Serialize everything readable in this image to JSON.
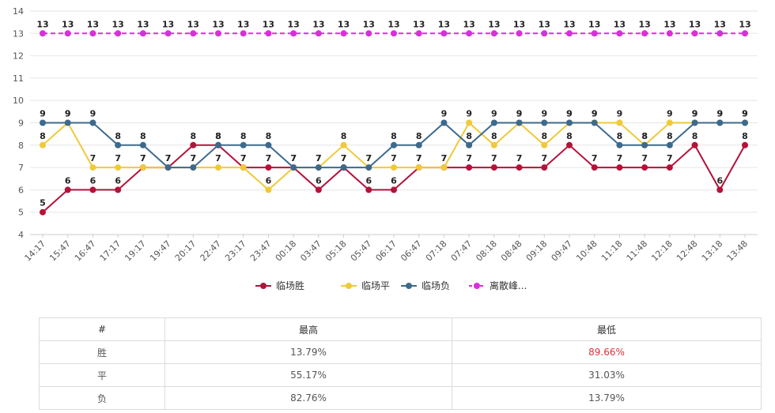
{
  "chart_data": {
    "type": "line",
    "x": [
      "14:17",
      "15:47",
      "16:47",
      "17:17",
      "19:17",
      "19:47",
      "20:17",
      "22:47",
      "23:17",
      "23:47",
      "00:18",
      "03:47",
      "05:18",
      "05:47",
      "06:17",
      "06:47",
      "07:18",
      "07:47",
      "08:18",
      "08:48",
      "09:18",
      "09:47",
      "10:48",
      "11:18",
      "11:48",
      "12:18",
      "12:48",
      "13:18",
      "13:48"
    ],
    "ylim": [
      4,
      14
    ],
    "yticks": [
      4,
      5,
      6,
      7,
      8,
      9,
      10,
      11,
      12,
      13,
      14
    ],
    "grid": true,
    "legend_position": "bottom",
    "series": [
      {
        "name": "临场胜",
        "color": "#b5123a",
        "style": "solid",
        "values": [
          5,
          6,
          6,
          6,
          7,
          7,
          8,
          8,
          7,
          7,
          7,
          6,
          7,
          6,
          6,
          7,
          7,
          7,
          7,
          7,
          7,
          8,
          7,
          7,
          7,
          7,
          8,
          6,
          8
        ]
      },
      {
        "name": "临场平",
        "color": "#f0c93a",
        "style": "solid",
        "values": [
          8,
          9,
          7,
          7,
          7,
          7,
          7,
          7,
          7,
          6,
          7,
          7,
          8,
          7,
          7,
          7,
          7,
          9,
          8,
          9,
          8,
          9,
          9,
          9,
          8,
          9,
          9,
          9,
          9
        ]
      },
      {
        "name": "临场负",
        "color": "#3d6a8c",
        "style": "solid",
        "values": [
          9,
          9,
          9,
          8,
          8,
          7,
          7,
          8,
          8,
          8,
          7,
          7,
          7,
          7,
          8,
          8,
          9,
          8,
          9,
          9,
          9,
          9,
          9,
          8,
          8,
          8,
          9,
          9,
          9
        ]
      },
      {
        "name": "离散峰...",
        "color": "#d92fd9",
        "style": "dashed",
        "values": [
          13,
          13,
          13,
          13,
          13,
          13,
          13,
          13,
          13,
          13,
          13,
          13,
          13,
          13,
          13,
          13,
          13,
          13,
          13,
          13,
          13,
          13,
          13,
          13,
          13,
          13,
          13,
          13,
          13
        ]
      }
    ]
  },
  "table": {
    "headers": [
      "#",
      "最高",
      "最低"
    ],
    "rows": [
      {
        "label": "胜",
        "high": "13.79%",
        "low": "89.66%",
        "low_highlight": true
      },
      {
        "label": "平",
        "high": "55.17%",
        "low": "31.03%",
        "low_highlight": false
      },
      {
        "label": "负",
        "high": "82.76%",
        "low": "13.79%",
        "low_highlight": false
      }
    ]
  }
}
